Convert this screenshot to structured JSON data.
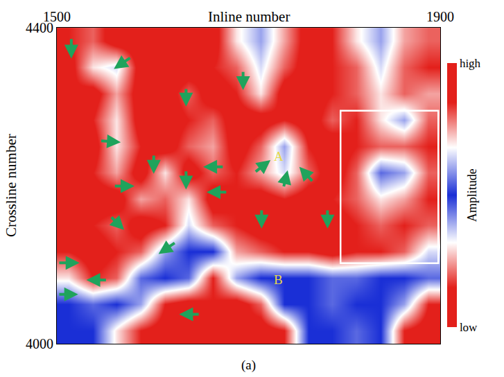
{
  "chart_data": {
    "type": "heatmap",
    "caption": "(a)",
    "xlabel": "Inline number",
    "ylabel": "Crossline number",
    "xlim": [
      1500,
      1900
    ],
    "xticks": [
      1500,
      1900
    ],
    "ylim": [
      4000,
      4400
    ],
    "yticks": [
      4000,
      4400
    ],
    "x": [
      1512.5,
      1537.5,
      1562.5,
      1587.5,
      1612.5,
      1637.5,
      1662.5,
      1687.5,
      1712.5,
      1737.5,
      1762.5,
      1787.5,
      1812.5,
      1837.5,
      1862.5,
      1887.5
    ],
    "y": [
      4383.3,
      4350,
      4316.7,
      4283.3,
      4250,
      4216.7,
      4183.3,
      4150,
      4116.7,
      4083.3,
      4050,
      4016.7
    ],
    "z": [
      [
        0.85,
        0.8,
        0.9,
        0.9,
        0.85,
        0.9,
        0.9,
        0.7,
        0.6,
        0.75,
        0.9,
        0.85,
        0.7,
        0.6,
        0.75,
        0.8
      ],
      [
        0.9,
        0.7,
        0.65,
        0.9,
        0.9,
        0.9,
        0.85,
        0.8,
        0.65,
        0.8,
        0.9,
        0.85,
        0.8,
        0.65,
        0.8,
        0.85
      ],
      [
        0.85,
        0.9,
        0.75,
        0.9,
        0.9,
        0.8,
        0.9,
        0.85,
        0.7,
        0.9,
        0.9,
        0.85,
        0.8,
        0.7,
        0.8,
        0.75
      ],
      [
        0.9,
        0.85,
        0.7,
        0.9,
        0.9,
        0.85,
        0.8,
        0.9,
        0.9,
        0.85,
        0.9,
        0.8,
        0.85,
        0.7,
        0.6,
        0.8
      ],
      [
        0.85,
        0.9,
        0.7,
        0.85,
        0.9,
        0.8,
        0.75,
        0.9,
        0.8,
        0.6,
        0.85,
        0.9,
        0.85,
        0.8,
        0.8,
        0.85
      ],
      [
        0.9,
        0.85,
        0.75,
        0.9,
        0.7,
        0.9,
        0.8,
        0.85,
        0.75,
        0.65,
        0.8,
        0.9,
        0.8,
        0.55,
        0.6,
        0.8
      ],
      [
        0.85,
        0.9,
        0.9,
        0.75,
        0.8,
        0.7,
        0.9,
        0.85,
        0.9,
        0.85,
        0.9,
        0.85,
        0.8,
        0.7,
        0.75,
        0.85
      ],
      [
        0.9,
        0.85,
        0.8,
        0.9,
        0.85,
        0.65,
        0.8,
        0.85,
        0.9,
        0.9,
        0.85,
        0.9,
        0.85,
        0.8,
        0.85,
        0.8
      ],
      [
        0.85,
        0.9,
        0.85,
        0.8,
        0.6,
        0.5,
        0.5,
        0.75,
        0.8,
        0.85,
        0.85,
        0.9,
        0.85,
        0.85,
        0.8,
        0.65
      ],
      [
        0.7,
        0.85,
        0.8,
        0.55,
        0.5,
        0.55,
        0.85,
        0.6,
        0.5,
        0.5,
        0.5,
        0.55,
        0.55,
        0.5,
        0.5,
        0.55
      ],
      [
        0.5,
        0.55,
        0.5,
        0.6,
        0.85,
        0.9,
        0.85,
        0.9,
        0.8,
        0.5,
        0.5,
        0.55,
        0.5,
        0.5,
        0.6,
        0.85
      ],
      [
        0.5,
        0.5,
        0.7,
        0.85,
        0.9,
        0.85,
        0.9,
        0.85,
        0.9,
        0.85,
        0.5,
        0.5,
        0.55,
        0.5,
        0.85,
        0.9
      ]
    ],
    "colorbar": {
      "title": "Amplitude",
      "range": [
        0,
        1
      ],
      "ticks": [
        {
          "value": 0,
          "label": "low"
        },
        {
          "value": 1,
          "label": "high"
        }
      ]
    },
    "annotations": [
      {
        "text": "A",
        "x": 1731.5,
        "y": 4237
      },
      {
        "text": "B",
        "x": 1731,
        "y": 4081
      }
    ],
    "arrows": [
      {
        "x": 1515.1,
        "y": 4361.0,
        "from_x": 1515.1,
        "from_y": 4387.0
      },
      {
        "x": 1559.5,
        "y": 4347.9,
        "from_x": 1577.4,
        "from_y": 4362.7
      },
      {
        "x": 1634.8,
        "y": 4300.2,
        "from_x": 1634.8,
        "from_y": 4323.6
      },
      {
        "x": 1694.3,
        "y": 4321.0,
        "from_x": 1694.3,
        "from_y": 4345.3
      },
      {
        "x": 1566.7,
        "y": 4255.1,
        "from_x": 1545.2,
        "from_y": 4256.8
      },
      {
        "x": 1601.1,
        "y": 4215.2,
        "from_x": 1601.1,
        "from_y": 4239.5
      },
      {
        "x": 1581.0,
        "y": 4199.6,
        "from_x": 1559.5,
        "from_y": 4199.6
      },
      {
        "x": 1634.8,
        "y": 4195.2,
        "from_x": 1634.8,
        "from_y": 4219.5
      },
      {
        "x": 1652.7,
        "y": 4223.9,
        "from_x": 1674.2,
        "from_y": 4223.9
      },
      {
        "x": 1656.3,
        "y": 4191.8,
        "from_x": 1677.8,
        "from_y": 4191.8
      },
      {
        "x": 1570.2,
        "y": 4144.0,
        "from_x": 1555.9,
        "from_y": 4161.4
      },
      {
        "x": 1606.1,
        "y": 4113.7,
        "from_x": 1624.0,
        "from_y": 4128.4
      },
      {
        "x": 1722.9,
        "y": 4232.5,
        "from_x": 1706.4,
        "from_y": 4216.9
      },
      {
        "x": 1740.8,
        "y": 4219.5,
        "from_x": 1736.5,
        "from_y": 4197.8
      },
      {
        "x": 1753.0,
        "y": 4223.9,
        "from_x": 1767.4,
        "from_y": 4204.8
      },
      {
        "x": 1713.6,
        "y": 4145.8,
        "from_x": 1713.6,
        "from_y": 4170.1
      },
      {
        "x": 1782.4,
        "y": 4145.8,
        "from_x": 1782.4,
        "from_y": 4170.1
      },
      {
        "x": 1523.7,
        "y": 4102.4,
        "from_x": 1501.4,
        "from_y": 4102.4
      },
      {
        "x": 1530.8,
        "y": 4080.7,
        "from_x": 1552.3,
        "from_y": 4080.7
      },
      {
        "x": 1522.2,
        "y": 4062.5,
        "from_x": 1501.4,
        "from_y": 4062.5
      },
      {
        "x": 1627.6,
        "y": 4037.3,
        "from_x": 1649.1,
        "from_y": 4037.3
      }
    ],
    "box": {
      "x0": 1796,
      "x1": 1898,
      "y0": 4102,
      "y1": 4295
    }
  }
}
